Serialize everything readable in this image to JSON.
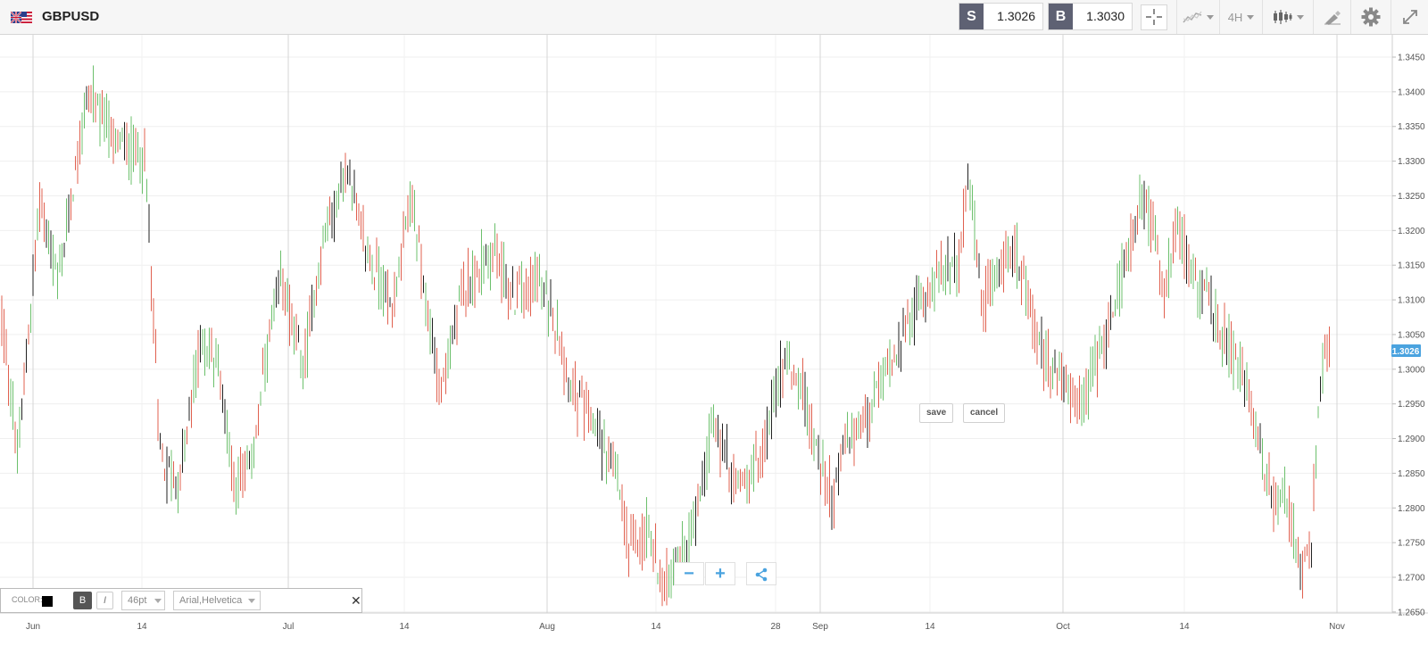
{
  "symbol": "GBPUSD",
  "sell": {
    "label": "S",
    "price": "1.3026"
  },
  "buy": {
    "label": "B",
    "price": "1.3030"
  },
  "toolbar": {
    "timeframe": "4H",
    "icons": [
      "crosshair-icon",
      "indicators-icon",
      "timeframe-dropdown",
      "chart-type-icon",
      "drawing-icon",
      "settings-icon",
      "expand-icon"
    ]
  },
  "edit": {
    "save": "save",
    "cancel": "cancel"
  },
  "text_tool": {
    "color_label": "COLOR:",
    "color_value": "#000000",
    "bold": "B",
    "italic": "I",
    "size": "46pt",
    "font": "Arial,Helvetica",
    "close": "✕"
  },
  "zoom": {
    "minus": "−",
    "plus": "+"
  },
  "colors": {
    "up": "#6cc06c",
    "down": "#e0604f",
    "neutral": "#222222",
    "current_price_bg": "#4aa3df"
  },
  "chart_data": {
    "type": "ohlc",
    "symbol": "GBPUSD",
    "timeframe": "4H",
    "current_price": "1.3026",
    "y_ticks": [
      "1.3450",
      "1.3400",
      "1.3350",
      "1.3300",
      "1.3250",
      "1.3200",
      "1.3150",
      "1.3100",
      "1.3050",
      "1.3000",
      "1.2950",
      "1.2900",
      "1.2850",
      "1.2800",
      "1.2750",
      "1.2700",
      "1.2650"
    ],
    "ylim": [
      1.2645,
      1.3475
    ],
    "x_ticks": [
      "Jun",
      "14",
      "Jul",
      "14",
      "Aug",
      "14",
      "28",
      "Sep",
      "14",
      "Oct",
      "14",
      "Nov"
    ],
    "price_path": [
      {
        "t": 0,
        "p": 1.31
      },
      {
        "t": 20,
        "p": 1.287
      },
      {
        "t": 45,
        "p": 1.325
      },
      {
        "t": 65,
        "p": 1.312
      },
      {
        "t": 98,
        "p": 1.34
      },
      {
        "t": 130,
        "p": 1.333
      },
      {
        "t": 163,
        "p": 1.33
      },
      {
        "t": 180,
        "p": 1.287
      },
      {
        "t": 200,
        "p": 1.283
      },
      {
        "t": 225,
        "p": 1.304
      },
      {
        "t": 245,
        "p": 1.301
      },
      {
        "t": 262,
        "p": 1.284
      },
      {
        "t": 280,
        "p": 1.285
      },
      {
        "t": 300,
        "p": 1.303
      },
      {
        "t": 316,
        "p": 1.313
      },
      {
        "t": 340,
        "p": 1.3
      },
      {
        "t": 362,
        "p": 1.318
      },
      {
        "t": 390,
        "p": 1.329
      },
      {
        "t": 410,
        "p": 1.317
      },
      {
        "t": 440,
        "p": 1.309
      },
      {
        "t": 460,
        "p": 1.325
      },
      {
        "t": 480,
        "p": 1.307
      },
      {
        "t": 495,
        "p": 1.297
      },
      {
        "t": 520,
        "p": 1.312
      },
      {
        "t": 555,
        "p": 1.317
      },
      {
        "t": 575,
        "p": 1.31
      },
      {
        "t": 600,
        "p": 1.313
      },
      {
        "t": 620,
        "p": 1.308
      },
      {
        "t": 640,
        "p": 1.297
      },
      {
        "t": 660,
        "p": 1.293
      },
      {
        "t": 690,
        "p": 1.285
      },
      {
        "t": 705,
        "p": 1.274
      },
      {
        "t": 725,
        "p": 1.277
      },
      {
        "t": 745,
        "p": 1.269
      },
      {
        "t": 770,
        "p": 1.274
      },
      {
        "t": 800,
        "p": 1.292
      },
      {
        "t": 825,
        "p": 1.283
      },
      {
        "t": 850,
        "p": 1.286
      },
      {
        "t": 880,
        "p": 1.302
      },
      {
        "t": 900,
        "p": 1.297
      },
      {
        "t": 915,
        "p": 1.288
      },
      {
        "t": 935,
        "p": 1.281
      },
      {
        "t": 945,
        "p": 1.289
      },
      {
        "t": 975,
        "p": 1.294
      },
      {
        "t": 1000,
        "p": 1.302
      },
      {
        "t": 1040,
        "p": 1.312
      },
      {
        "t": 1075,
        "p": 1.316
      },
      {
        "t": 1085,
        "p": 1.328
      },
      {
        "t": 1100,
        "p": 1.309
      },
      {
        "t": 1135,
        "p": 1.318
      },
      {
        "t": 1165,
        "p": 1.303
      },
      {
        "t": 1190,
        "p": 1.298
      },
      {
        "t": 1210,
        "p": 1.294
      },
      {
        "t": 1240,
        "p": 1.305
      },
      {
        "t": 1275,
        "p": 1.323
      },
      {
        "t": 1290,
        "p": 1.322
      },
      {
        "t": 1305,
        "p": 1.311
      },
      {
        "t": 1320,
        "p": 1.32
      },
      {
        "t": 1350,
        "p": 1.31
      },
      {
        "t": 1380,
        "p": 1.302
      },
      {
        "t": 1395,
        "p": 1.298
      },
      {
        "t": 1410,
        "p": 1.29
      },
      {
        "t": 1425,
        "p": 1.281
      },
      {
        "t": 1440,
        "p": 1.283
      },
      {
        "t": 1458,
        "p": 1.27
      },
      {
        "t": 1470,
        "p": 1.276
      },
      {
        "t": 1478,
        "p": 1.296
      },
      {
        "t": 1484,
        "p": 1.303
      },
      {
        "t": 1490,
        "p": 1.3026
      }
    ]
  }
}
